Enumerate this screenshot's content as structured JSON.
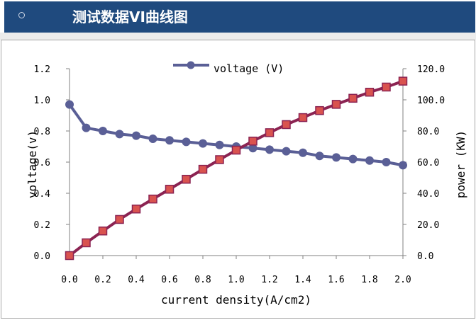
{
  "header": {
    "title": "测试数据VI曲线图"
  },
  "chart_data": {
    "type": "line",
    "title": "",
    "xlabel": "current density(A/cm2)",
    "ylabel_left": "voltage(v)",
    "ylabel_right": "power (KW)",
    "xlim": [
      0,
      2.0
    ],
    "ylim_left": [
      0,
      1.2
    ],
    "ylim_right": [
      0,
      120
    ],
    "x_ticks": [
      "0.0",
      "0.2",
      "0.4",
      "0.6",
      "0.8",
      "1.0",
      "1.2",
      "1.4",
      "1.6",
      "1.8",
      "2.0"
    ],
    "y_left_ticks": [
      "0.0",
      "0.2",
      "0.4",
      "0.6",
      "0.8",
      "1.0",
      "1.2"
    ],
    "y_right_ticks": [
      "0.0",
      "20.0",
      "40.0",
      "60.0",
      "80.0",
      "100.0",
      "120.0"
    ],
    "legend_position": "top-center",
    "x": [
      0.0,
      0.1,
      0.2,
      0.3,
      0.4,
      0.5,
      0.6,
      0.7,
      0.8,
      0.9,
      1.0,
      1.1,
      1.2,
      1.3,
      1.4,
      1.5,
      1.6,
      1.7,
      1.8,
      1.9,
      2.0
    ],
    "series": [
      {
        "name": "voltage (V)",
        "axis": "left",
        "color": "#5a5f96",
        "marker": "circle",
        "values": [
          0.97,
          0.82,
          0.8,
          0.78,
          0.77,
          0.75,
          0.74,
          0.73,
          0.72,
          0.71,
          0.7,
          0.69,
          0.68,
          0.67,
          0.66,
          0.64,
          0.63,
          0.62,
          0.61,
          0.6,
          0.58
        ]
      },
      {
        "axis": "right",
        "color": "#8b2352",
        "marker_color": "#d9534f",
        "marker": "square",
        "values": [
          0,
          8.2,
          15.8,
          23.2,
          29.9,
          36.3,
          42.6,
          49.0,
          55.4,
          61.6,
          67.7,
          73.5,
          78.9,
          84.1,
          88.6,
          93.1,
          97.1,
          101.0,
          104.9,
          108.2,
          112.0
        ]
      }
    ]
  }
}
